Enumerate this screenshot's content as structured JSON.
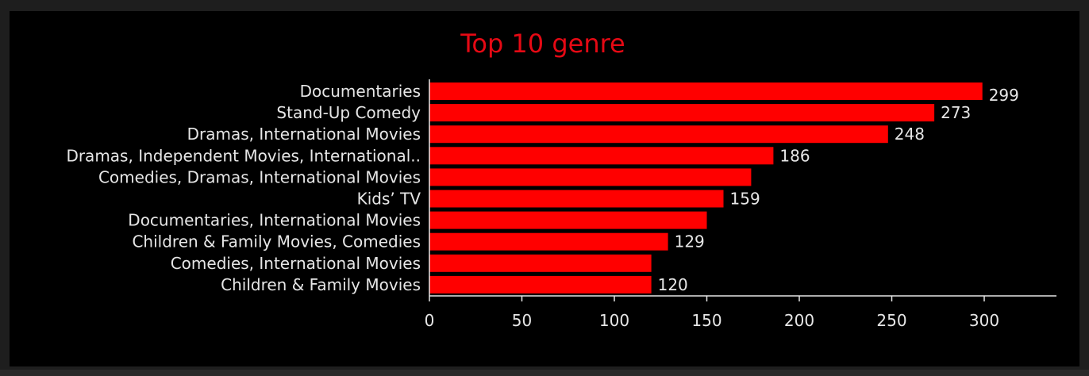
{
  "chart_data": {
    "type": "bar",
    "orientation": "horizontal",
    "title": "Top 10 genre",
    "xlabel": "",
    "ylabel": "",
    "categories": [
      "Documentaries",
      "Stand-Up Comedy",
      "Dramas, International Movies",
      "Dramas, Independent Movies, International..",
      "Comedies, Dramas, International Movies",
      "Kids’ TV",
      "Documentaries, International Movies",
      "Children & Family Movies, Comedies",
      "Comedies, International Movies",
      "Children & Family Movies"
    ],
    "values": [
      299,
      273,
      248,
      186,
      174,
      159,
      150,
      129,
      120,
      120
    ],
    "data_labels": [
      "299",
      "273",
      "248",
      "186",
      "",
      "159",
      "",
      "129",
      "",
      "120"
    ],
    "xlim": [
      0,
      340
    ],
    "xticks": [
      0,
      50,
      100,
      150,
      200,
      250,
      300
    ],
    "grid": false,
    "legend": "none",
    "colors": {
      "bar": "#ff0000",
      "title": "#e50914",
      "text": "#e6e6e6",
      "axis": "#e6e6e6",
      "background": "#000000",
      "frame": "#1e1e1e"
    }
  }
}
